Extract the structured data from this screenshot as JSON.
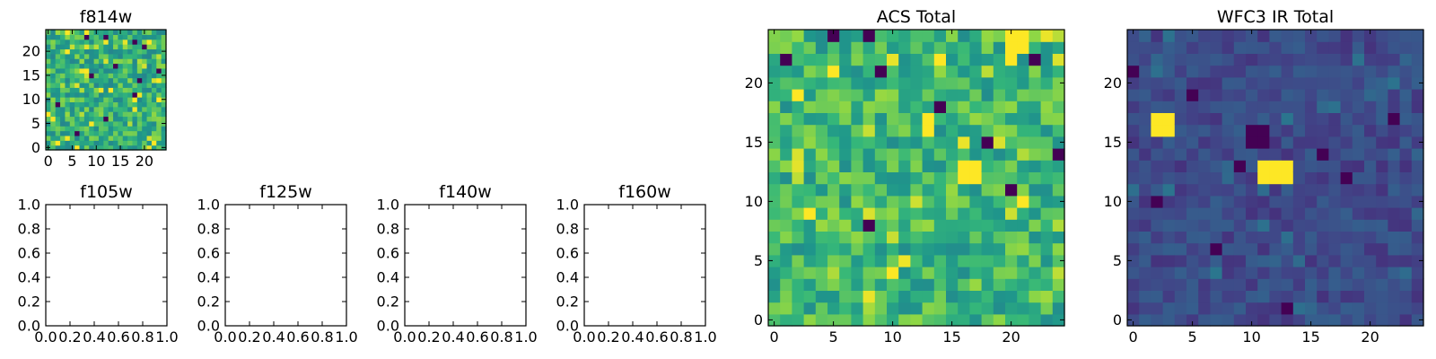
{
  "chart_data": [
    {
      "type": "heatmap",
      "title": "f814w",
      "grid_size": 25,
      "xlim": [
        -0.5,
        24.5
      ],
      "ylim": [
        -0.5,
        24.5
      ],
      "xticks": [
        0,
        5,
        10,
        15,
        20
      ],
      "yticks": [
        0,
        5,
        10,
        15,
        20
      ],
      "colormap": "viridis",
      "value_range": [
        0,
        1
      ],
      "seed": 814,
      "base_level": 0.72,
      "spread": 0.16,
      "dark_pixels": [
        [
          8,
          23
        ],
        [
          12,
          23
        ],
        [
          18,
          22
        ],
        [
          20,
          21
        ],
        [
          9,
          15
        ],
        [
          14,
          17
        ],
        [
          6,
          3
        ],
        [
          18,
          11
        ],
        [
          12,
          6
        ],
        [
          19,
          14
        ],
        [
          2,
          9
        ],
        [
          23,
          16
        ]
      ],
      "bright_patches": []
    },
    {
      "type": "heatmap",
      "title": "",
      "xlim": [
        0,
        1
      ],
      "ylim": [
        0,
        1
      ],
      "xtick_labels": [],
      "ytick_labels": []
    },
    {
      "type": "heatmap",
      "title": "",
      "xlim": [
        0,
        1
      ],
      "ylim": [
        0,
        1
      ],
      "xtick_labels": [],
      "ytick_labels": []
    },
    {
      "type": "heatmap",
      "title": "ACS Total",
      "grid_size": 25,
      "xlim": [
        -0.5,
        24.5
      ],
      "ylim": [
        -0.5,
        24.5
      ],
      "xticks": [
        0,
        5,
        10,
        15,
        20
      ],
      "yticks": [
        0,
        5,
        10,
        15,
        20
      ],
      "colormap": "viridis",
      "value_range": [
        0,
        1
      ],
      "seed": 2201,
      "base_level": 0.74,
      "spread": 0.15,
      "dark_pixels": [
        [
          5,
          24
        ],
        [
          8,
          24
        ],
        [
          1,
          22
        ],
        [
          9,
          21
        ],
        [
          22,
          22
        ],
        [
          18,
          15
        ],
        [
          20,
          11
        ],
        [
          8,
          8
        ],
        [
          24,
          14
        ],
        [
          14,
          18
        ]
      ],
      "bright_patches": [
        [
          20,
          23,
          21,
          24
        ],
        [
          13,
          16,
          13,
          17
        ],
        [
          16,
          12,
          17,
          13
        ]
      ]
    },
    {
      "type": "heatmap",
      "title": "WFC3 IR Total",
      "grid_size": 25,
      "xlim": [
        -0.5,
        24.5
      ],
      "ylim": [
        -0.5,
        24.5
      ],
      "xticks": [
        0,
        5,
        10,
        15,
        20
      ],
      "yticks": [
        0,
        5,
        10,
        15,
        20
      ],
      "colormap": "viridis",
      "value_range": [
        0,
        1
      ],
      "seed": 3301,
      "base_level": 0.28,
      "spread": 0.1,
      "dark_pixels": [
        [
          10,
          16
        ],
        [
          11,
          16
        ],
        [
          10,
          15
        ],
        [
          11,
          15
        ],
        [
          9,
          13
        ],
        [
          18,
          12
        ],
        [
          5,
          19
        ],
        [
          22,
          17
        ],
        [
          2,
          10
        ],
        [
          13,
          1
        ],
        [
          0,
          21
        ],
        [
          16,
          14
        ],
        [
          7,
          6
        ]
      ],
      "bright_patches": [
        [
          2,
          16,
          3,
          17
        ],
        [
          11,
          12,
          13,
          13
        ]
      ]
    },
    {
      "type": "heatmap",
      "title": "f105w",
      "xlim": [
        0,
        1
      ],
      "ylim": [
        0,
        1
      ],
      "xtick_labels": [
        "0.0",
        "0.2",
        "0.4",
        "0.6",
        "0.8",
        "1.0"
      ],
      "ytick_labels": [
        "0.0",
        "0.2",
        "0.4",
        "0.6",
        "0.8",
        "1.0"
      ]
    },
    {
      "type": "heatmap",
      "title": "f125w",
      "xlim": [
        0,
        1
      ],
      "ylim": [
        0,
        1
      ],
      "xtick_labels": [
        "0.0",
        "0.2",
        "0.4",
        "0.6",
        "0.8",
        "1.0"
      ],
      "ytick_labels": [
        "0.0",
        "0.2",
        "0.4",
        "0.6",
        "0.8",
        "1.0"
      ]
    },
    {
      "type": "heatmap",
      "title": "f140w",
      "xlim": [
        0,
        1
      ],
      "ylim": [
        0,
        1
      ],
      "xtick_labels": [
        "0.0",
        "0.2",
        "0.4",
        "0.6",
        "0.8",
        "1.0"
      ],
      "ytick_labels": [
        "0.0",
        "0.2",
        "0.4",
        "0.6",
        "0.8",
        "1.0"
      ]
    },
    {
      "type": "heatmap",
      "title": "f160w",
      "xlim": [
        0,
        1
      ],
      "ylim": [
        0,
        1
      ],
      "xtick_labels": [
        "0.0",
        "0.2",
        "0.4",
        "0.6",
        "0.8",
        "1.0"
      ],
      "ytick_labels": [
        "0.0",
        "0.2",
        "0.4",
        "0.6",
        "0.8",
        "1.0"
      ]
    }
  ]
}
